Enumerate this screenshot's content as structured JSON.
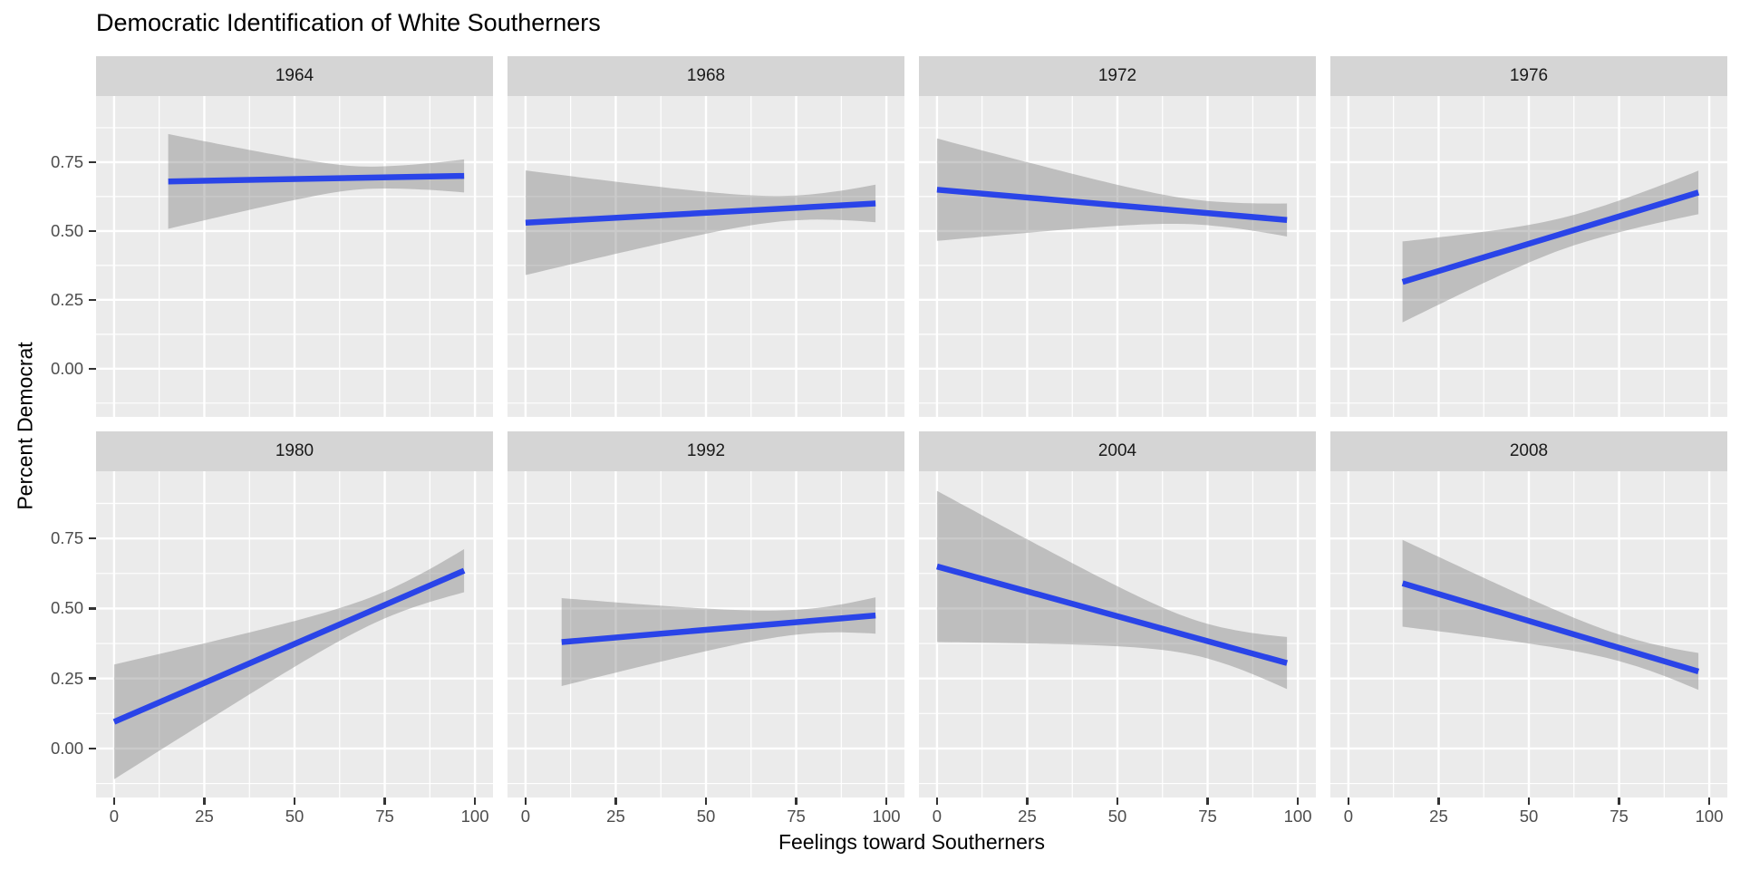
{
  "title": "Democratic Identification of White Southerners",
  "colors": {
    "trend_line": "#2A44E8",
    "ci_band": "#808080",
    "ci_band_opacity": 0.42,
    "panel_background": "#EBEBEB",
    "strip_background": "#D5D5D5",
    "gridline": "#FFFFFF",
    "tick_text": "#4D4D4D",
    "tick_mark": "#333333",
    "strip_text": "#1A1A1A",
    "title_text": "#000000"
  },
  "chart_data": {
    "type": "line",
    "title": "Democratic Identification of White Southerners",
    "xlabel": "Feelings toward Southerners",
    "ylabel": "Percent Democrat",
    "facet_variable": "year",
    "facet_layout": {
      "rows": 2,
      "cols": 4
    },
    "grid": true,
    "legend": "none",
    "xlim": [
      -5,
      105
    ],
    "ylim": [
      -0.175,
      0.99
    ],
    "x_major_ticks": [
      0,
      25,
      50,
      75,
      100
    ],
    "x_tick_labels": [
      "0",
      "25",
      "50",
      "75",
      "100"
    ],
    "x_minor_ticks": [
      12.5,
      37.5,
      62.5,
      87.5
    ],
    "y_major_ticks": [
      0,
      0.25,
      0.5,
      0.75
    ],
    "y_tick_labels": [
      "0.00",
      "0.25",
      "0.50",
      "0.75"
    ],
    "y_minor_ticks": [
      -0.125,
      0.125,
      0.375,
      0.625,
      0.875
    ],
    "series_note": "Each facet: OLS trend line of Percent Democrat vs Feelings toward Southerners with 95% CI band; line_y gives fitted value at x_range endpoints; ci_halfwidth gives CI half-width at [left end, waist, right end].",
    "facets": [
      {
        "label": "1964",
        "x_range": [
          15,
          97
        ],
        "line_y": [
          0.68,
          0.7
        ],
        "ci_waist_x": 72,
        "ci_halfwidth": [
          0.172,
          0.04,
          0.06
        ]
      },
      {
        "label": "1968",
        "x_range": [
          0,
          97
        ],
        "line_y": [
          0.53,
          0.6
        ],
        "ci_waist_x": 75,
        "ci_halfwidth": [
          0.19,
          0.045,
          0.068
        ]
      },
      {
        "label": "1972",
        "x_range": [
          0,
          97
        ],
        "line_y": [
          0.65,
          0.54
        ],
        "ci_waist_x": 75,
        "ci_halfwidth": [
          0.186,
          0.044,
          0.06
        ]
      },
      {
        "label": "1976",
        "x_range": [
          15,
          97
        ],
        "line_y": [
          0.315,
          0.64
        ],
        "ci_waist_x": 65,
        "ci_halfwidth": [
          0.147,
          0.055,
          0.079
        ]
      },
      {
        "label": "1980",
        "x_range": [
          0,
          97
        ],
        "line_y": [
          0.095,
          0.635
        ],
        "ci_waist_x": 75,
        "ci_halfwidth": [
          0.205,
          0.048,
          0.077
        ]
      },
      {
        "label": "1992",
        "x_range": [
          10,
          97
        ],
        "line_y": [
          0.38,
          0.475
        ],
        "ci_waist_x": 78,
        "ci_halfwidth": [
          0.157,
          0.044,
          0.065
        ]
      },
      {
        "label": "2004",
        "x_range": [
          0,
          97
        ],
        "line_y": [
          0.65,
          0.305
        ],
        "ci_waist_x": 75,
        "ci_halfwidth": [
          0.27,
          0.062,
          0.093
        ]
      },
      {
        "label": "2008",
        "x_range": [
          15,
          97
        ],
        "line_y": [
          0.59,
          0.275
        ],
        "ci_waist_x": 78,
        "ci_halfwidth": [
          0.155,
          0.047,
          0.066
        ]
      }
    ]
  }
}
